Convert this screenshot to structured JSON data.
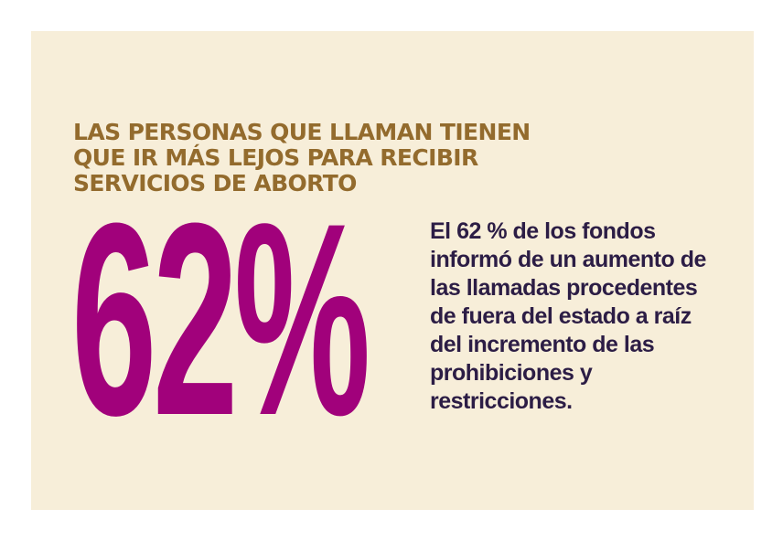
{
  "colors": {
    "page_background": "#ffffff",
    "panel_background": "#f7eed9",
    "headline": "#936b2d",
    "stat": "#a1017b",
    "body": "#2c1d45"
  },
  "headline": {
    "lines": [
      "LAS PERSONAS QUE LLAMAN TIENEN",
      "QUE IR MÁS LEJOS PARA RECIBIR",
      "SERVICIOS DE ABORTO"
    ]
  },
  "stat": {
    "value": "62%"
  },
  "description": {
    "lines": [
      "El 62 % de los fondos",
      "informó de un aumento de",
      "las llamadas procedentes",
      "de fuera del estado a raíz",
      "del incremento de las",
      "prohibiciones y",
      "restricciones."
    ]
  }
}
